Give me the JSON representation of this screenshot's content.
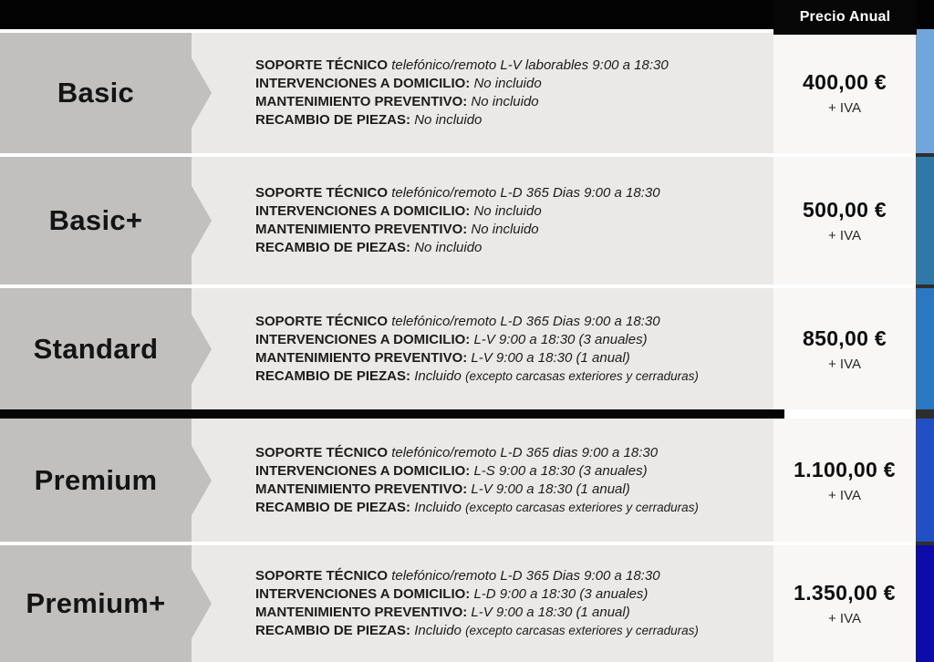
{
  "header": {
    "price_column_label": "Precio Anual"
  },
  "colors": {
    "header_bg": "#030303",
    "label_box": "#c1c0bf",
    "content_bg": "#ebe9e7",
    "price_card_bg": "#f8f7f6",
    "divider": "#060606",
    "side_column_gap": "#2e2e2e"
  },
  "tiers": [
    {
      "name": "Basic",
      "price": "400,00 €",
      "vat": "+ IVA",
      "bar_color": "#6fa7dc",
      "features": [
        {
          "label": "SOPORTE TÉCNICO",
          "value": "telefónico/remoto L-V laborables 9:00 a 18:30",
          "note": ""
        },
        {
          "label": "INTERVENCIONES A DOMICILIO:",
          "value": "No incluido",
          "note": ""
        },
        {
          "label": "MANTENIMIENTO PREVENTIVO:",
          "value": "No incluido",
          "note": ""
        },
        {
          "label": "RECAMBIO DE PIEZAS:",
          "value": "No incluido",
          "note": ""
        }
      ]
    },
    {
      "name": "Basic+",
      "price": "500,00 €",
      "vat": "+ IVA",
      "bar_color": "#2e79a8",
      "features": [
        {
          "label": "SOPORTE TÉCNICO",
          "value": "telefónico/remoto L-D 365 Dias 9:00 a 18:30",
          "note": ""
        },
        {
          "label": "INTERVENCIONES A DOMICILIO:",
          "value": "No incluido",
          "note": ""
        },
        {
          "label": "MANTENIMIENTO PREVENTIVO:",
          "value": "No incluido",
          "note": ""
        },
        {
          "label": "RECAMBIO DE PIEZAS:",
          "value": "No incluido",
          "note": ""
        }
      ]
    },
    {
      "name": "Standard",
      "price": "850,00 €",
      "vat": "+ IVA",
      "bar_color": "#2b78c2",
      "features": [
        {
          "label": "SOPORTE TÉCNICO",
          "value": "telefónico/remoto L-D 365 Dias 9:00 a 18:30",
          "note": ""
        },
        {
          "label": "INTERVENCIONES A DOMICILIO:",
          "value": "L-V 9:00 a 18:30 (3 anuales)",
          "note": ""
        },
        {
          "label": "MANTENIMIENTO PREVENTIVO:",
          "value": "L-V 9:00 a 18:30 (1 anual)",
          "note": ""
        },
        {
          "label": "RECAMBIO DE PIEZAS:",
          "value": "Incluido",
          "note": "(excepto carcasas exteriores y cerraduras)"
        }
      ]
    },
    {
      "name": "Premium",
      "price": "1.100,00 €",
      "vat": "+ IVA",
      "bar_color": "#2150c4",
      "features": [
        {
          "label": "SOPORTE TÉCNICO",
          "value": "telefónico/remoto L-D 365 dias 9:00 a 18:30",
          "note": ""
        },
        {
          "label": "INTERVENCIONES A DOMICILIO:",
          "value": "L-S 9:00 a 18:30 (3 anuales)",
          "note": ""
        },
        {
          "label": "MANTENIMIENTO PREVENTIVO:",
          "value": "L-V 9:00 a 18:30 (1 anual)",
          "note": ""
        },
        {
          "label": "RECAMBIO DE PIEZAS:",
          "value": "Incluido",
          "note": "(excepto carcasas exteriores y cerraduras)"
        }
      ]
    },
    {
      "name": "Premium+",
      "price": "1.350,00 €",
      "vat": "+ IVA",
      "bar_color": "#0d0baa",
      "features": [
        {
          "label": "SOPORTE TÉCNICO",
          "value": "telefónico/remoto L-D 365 Dias 9:00 a 18:30",
          "note": ""
        },
        {
          "label": "INTERVENCIONES A DOMICILIO:",
          "value": "L-D 9:00 a 18:30 (3 anuales)",
          "note": ""
        },
        {
          "label": "MANTENIMIENTO PREVENTIVO:",
          "value": "L-V 9:00 a 18:30 (1 anual)",
          "note": ""
        },
        {
          "label": "RECAMBIO DE PIEZAS:",
          "value": "Incluido",
          "note": "(excepto carcasas exteriores y cerraduras)"
        }
      ]
    }
  ]
}
